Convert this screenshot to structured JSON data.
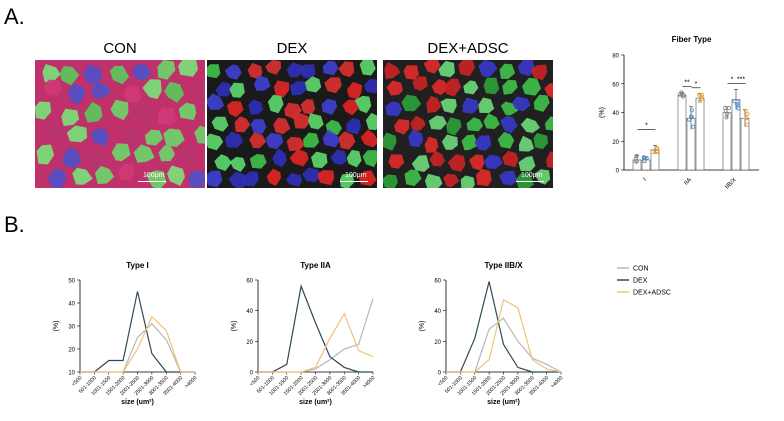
{
  "panel_a_label": "A.",
  "panel_b_label": "B.",
  "micrographs": [
    {
      "title": "CON",
      "scale_text": "100μm"
    },
    {
      "title": "DEX",
      "scale_text": "100μm"
    },
    {
      "title": "DEX+ADSC",
      "scale_text": "100μm"
    }
  ],
  "colors": {
    "CON": "#b8b8b8",
    "DEX": "#2f4a56",
    "DEX_ADSC": "#f0c27a",
    "dex_points": "#4a90c8",
    "adsc_points": "#e8a030"
  },
  "chart_data": [
    {
      "type": "bar",
      "title": "Fiber Type",
      "ylabel": "(%)",
      "ylim": [
        0,
        80
      ],
      "yticks": [
        0,
        20,
        40,
        60,
        80
      ],
      "categories": [
        "I",
        "IIA",
        "IIB/X"
      ],
      "series": [
        {
          "name": "CON",
          "values": [
            7,
            52,
            40
          ],
          "err": [
            3,
            2,
            4
          ]
        },
        {
          "name": "DEX",
          "values": [
            7,
            36,
            49
          ],
          "err": [
            2,
            8,
            7
          ]
        },
        {
          "name": "DEX+ADSC",
          "values": [
            14,
            50,
            36
          ],
          "err": [
            3,
            3,
            6
          ]
        }
      ],
      "significance": [
        {
          "label": "*",
          "group": "I",
          "bars": [
            0,
            2
          ]
        },
        {
          "label": "**",
          "group": "IIA",
          "bars": [
            0,
            1
          ]
        },
        {
          "label": "*",
          "group": "IIA",
          "bars": [
            1,
            2
          ]
        },
        {
          "label": "*",
          "group": "IIB/X",
          "bars": [
            0,
            1
          ]
        },
        {
          "label": "***",
          "group": "IIB/X",
          "bars": [
            1,
            2
          ]
        }
      ]
    },
    {
      "type": "line",
      "title": "Type I",
      "xlabel": "size (um²)",
      "ylabel": "(%)",
      "ylim": [
        10,
        50
      ],
      "yticks": [
        10,
        20,
        30,
        40,
        50
      ],
      "categories": [
        "<500",
        "501-1000",
        "1001-1500",
        "1501-2000",
        "2001-2500",
        "2501-3000",
        "3001-3500",
        "3501-4000",
        ">4000"
      ],
      "series": [
        {
          "name": "CON",
          "values": [
            10,
            10,
            10,
            10,
            25,
            31,
            24,
            10,
            10
          ]
        },
        {
          "name": "DEX",
          "values": [
            10,
            10,
            15,
            15,
            45,
            18,
            10,
            10,
            10
          ]
        },
        {
          "name": "DEX+ADSC",
          "values": [
            10,
            10,
            10,
            10,
            20,
            34,
            28,
            10,
            10
          ]
        }
      ]
    },
    {
      "type": "line",
      "title": "Type IIA",
      "xlabel": "size (um²)",
      "ylabel": "(%)",
      "ylim": [
        0,
        60
      ],
      "yticks": [
        0,
        20,
        40,
        60
      ],
      "categories": [
        "<500",
        "501-1000",
        "1001-1500",
        "1501-2000",
        "2001-2500",
        "2501-3000",
        "3001-3500",
        "3501-4000",
        ">4000"
      ],
      "series": [
        {
          "name": "CON",
          "values": [
            0,
            0,
            0,
            0,
            2,
            8,
            15,
            18,
            48
          ]
        },
        {
          "name": "DEX",
          "values": [
            0,
            0,
            5,
            56,
            32,
            10,
            3,
            0,
            0
          ]
        },
        {
          "name": "DEX+ADSC",
          "values": [
            0,
            0,
            0,
            0,
            3,
            22,
            38,
            14,
            10
          ]
        }
      ]
    },
    {
      "type": "line",
      "title": "Type IIB/X",
      "xlabel": "size (um²)",
      "ylabel": "(%)",
      "ylim": [
        0,
        60
      ],
      "yticks": [
        0,
        20,
        40,
        60
      ],
      "categories": [
        "<500",
        "501-1000",
        "1001-1500",
        "1501-2000",
        "2001-2500",
        "2501-3000",
        "3001-3500",
        "3501-4000",
        ">4000"
      ],
      "series": [
        {
          "name": "CON",
          "values": [
            0,
            0,
            0,
            28,
            35,
            20,
            9,
            5,
            0
          ]
        },
        {
          "name": "DEX",
          "values": [
            0,
            0,
            22,
            59,
            18,
            3,
            0,
            0,
            0
          ]
        },
        {
          "name": "DEX+ADSC",
          "values": [
            0,
            0,
            0,
            8,
            47,
            42,
            8,
            2,
            0
          ]
        }
      ]
    }
  ],
  "legend": [
    {
      "name": "CON"
    },
    {
      "name": "DEX"
    },
    {
      "name": "DEX+ADSC"
    }
  ]
}
